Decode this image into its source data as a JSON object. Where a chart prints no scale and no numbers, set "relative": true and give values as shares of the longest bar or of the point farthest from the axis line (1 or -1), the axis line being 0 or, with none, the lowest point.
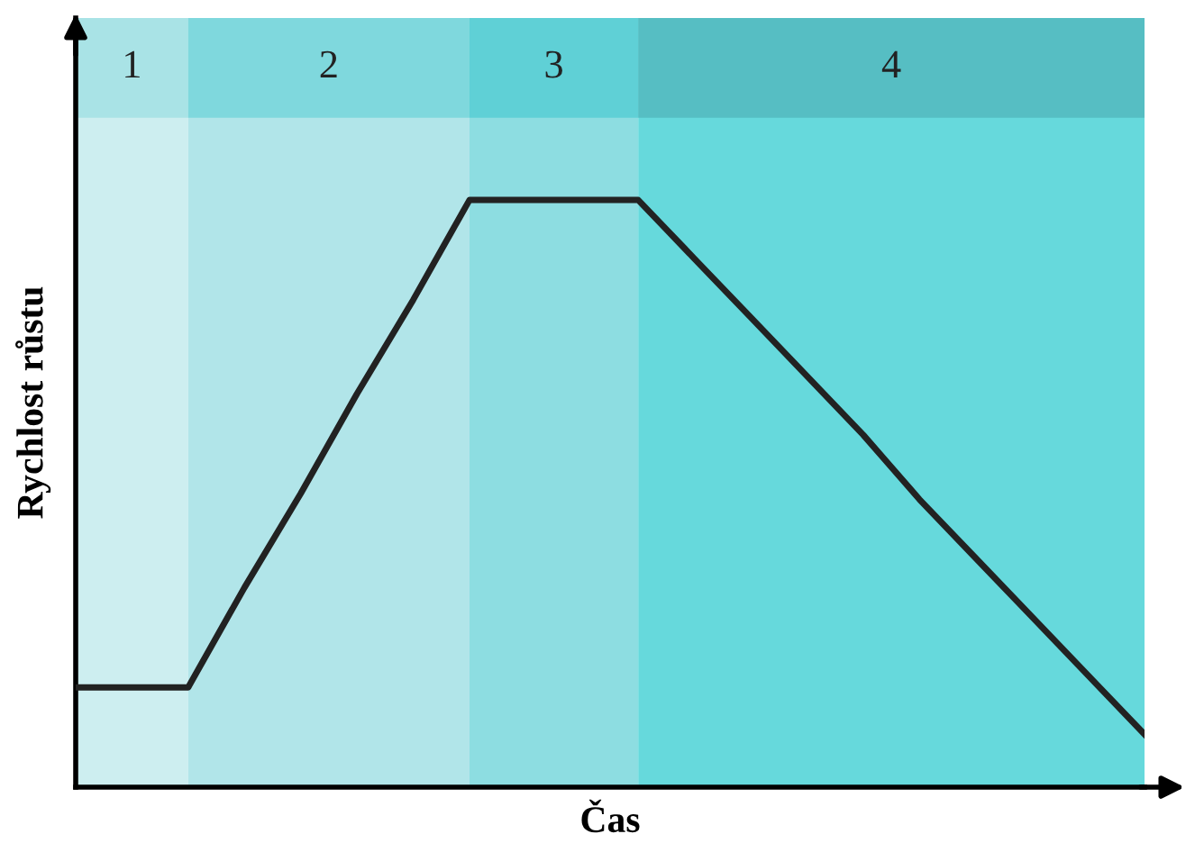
{
  "chart_data": {
    "type": "line",
    "xlabel": "Čas",
    "ylabel": "Rychlost růstu",
    "relative": true,
    "categories": [
      null,
      null,
      null,
      null,
      null,
      null,
      null,
      null,
      null,
      null,
      null,
      null,
      null,
      null,
      null,
      null,
      null,
      null,
      null,
      null
    ],
    "series": [
      {
        "color": "#222222",
        "values": [
          0.17,
          0.17,
          0.17,
          0.34,
          0.5,
          0.67,
          0.83,
          1,
          1,
          1,
          1,
          0.9,
          0.8,
          0.7,
          0.6,
          0.49,
          0.39,
          0.29,
          0.19,
          0.09
        ]
      }
    ],
    "legend": false,
    "line_style": "solid",
    "marker": "none",
    "annotations": [
      "1",
      "2",
      "3",
      "4"
    ]
  }
}
